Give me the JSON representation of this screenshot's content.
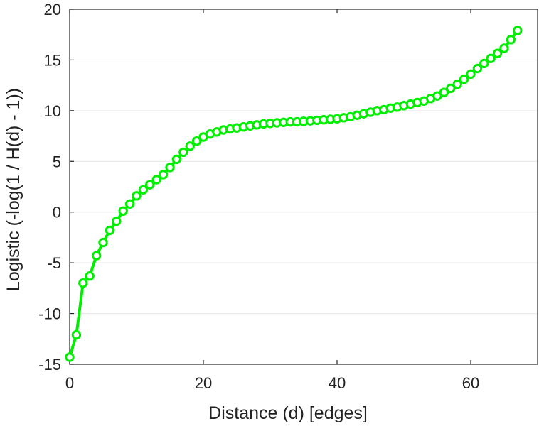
{
  "chart_data": {
    "type": "line",
    "title": "",
    "xlabel": "Distance (d) [edges]",
    "ylabel": "Logistic (-log(1 / H(d) - 1))",
    "xlim": [
      0,
      70
    ],
    "ylim": [
      -15,
      20
    ],
    "xticks": [
      0,
      20,
      40,
      60
    ],
    "yticks": [
      20,
      15,
      10,
      5,
      0,
      -5,
      -10,
      -15
    ],
    "grid": true,
    "legend": "none",
    "series_color": "#00ee00",
    "marker": "open-circle",
    "x": [
      0,
      1,
      2,
      3,
      4,
      5,
      6,
      7,
      8,
      9,
      10,
      11,
      12,
      13,
      14,
      15,
      16,
      17,
      18,
      19,
      20,
      21,
      22,
      23,
      24,
      25,
      26,
      27,
      28,
      29,
      30,
      31,
      32,
      33,
      34,
      35,
      36,
      37,
      38,
      39,
      40,
      41,
      42,
      43,
      44,
      45,
      46,
      47,
      48,
      49,
      50,
      51,
      52,
      53,
      54,
      55,
      56,
      57,
      58,
      59,
      60,
      61,
      62,
      63,
      64,
      65,
      66,
      67
    ],
    "y": [
      -14.3,
      -12.1,
      -7.0,
      -6.3,
      -4.3,
      -3.0,
      -1.8,
      -0.9,
      0.1,
      0.8,
      1.6,
      2.2,
      2.7,
      3.2,
      3.7,
      4.4,
      5.2,
      5.9,
      6.5,
      7.0,
      7.4,
      7.7,
      7.9,
      8.1,
      8.2,
      8.3,
      8.4,
      8.5,
      8.6,
      8.7,
      8.75,
      8.8,
      8.85,
      8.9,
      8.9,
      8.95,
      9.0,
      9.05,
      9.1,
      9.15,
      9.2,
      9.3,
      9.4,
      9.55,
      9.7,
      9.85,
      10.0,
      10.1,
      10.25,
      10.35,
      10.5,
      10.65,
      10.8,
      10.95,
      11.2,
      11.45,
      11.8,
      12.2,
      12.6,
      13.1,
      13.6,
      14.15,
      14.65,
      15.15,
      15.65,
      16.15,
      17.0,
      17.9
    ]
  }
}
